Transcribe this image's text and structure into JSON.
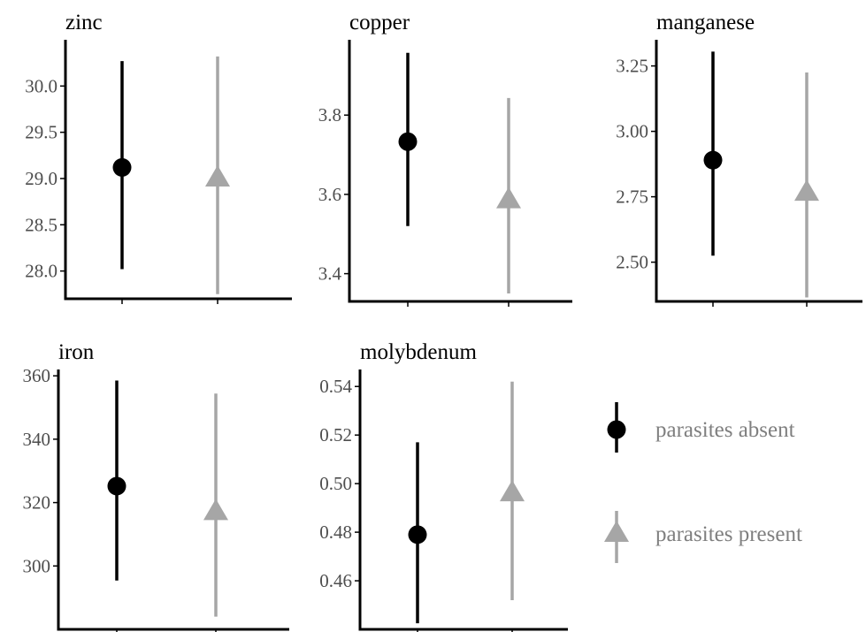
{
  "colors": {
    "absent": "#000000",
    "present": "#a6a6a6",
    "axis": "#000000",
    "tick_text": "#4d4d4d",
    "legend_text": "#7f7f7f"
  },
  "legend": {
    "placement": "bottom-right",
    "entries": [
      {
        "label": "parasites absent",
        "marker": "circle",
        "color": "#000000"
      },
      {
        "label": "parasites present",
        "marker": "triangle",
        "color": "#a6a6a6"
      }
    ]
  },
  "chart_data": [
    {
      "type": "scatter",
      "title": "zinc",
      "xlabel": "",
      "ylabel": "",
      "ylim": [
        27.7,
        30.5
      ],
      "yticks": [
        28.0,
        28.5,
        29.0,
        29.5,
        30.0
      ],
      "tick_labels": [
        "28.0",
        "28.5",
        "29.0",
        "29.5",
        "30.0"
      ],
      "grid": false,
      "series": [
        {
          "name": "parasites absent",
          "marker": "circle",
          "value": 29.12,
          "lower": 28.02,
          "upper": 30.27
        },
        {
          "name": "parasites present",
          "marker": "triangle",
          "value": 29.0,
          "lower": 27.75,
          "upper": 30.32
        }
      ]
    },
    {
      "type": "scatter",
      "title": "copper",
      "xlabel": "",
      "ylabel": "",
      "ylim": [
        3.33,
        3.99
      ],
      "yticks": [
        3.4,
        3.6,
        3.8
      ],
      "tick_labels": [
        "3.4",
        "3.6",
        "3.8"
      ],
      "grid": false,
      "series": [
        {
          "name": "parasites absent",
          "marker": "circle",
          "value": 3.733,
          "lower": 3.52,
          "upper": 3.957
        },
        {
          "name": "parasites present",
          "marker": "triangle",
          "value": 3.585,
          "lower": 3.35,
          "upper": 3.843
        }
      ]
    },
    {
      "type": "scatter",
      "title": "manganese",
      "xlabel": "",
      "ylabel": "",
      "ylim": [
        2.35,
        3.35
      ],
      "yticks": [
        2.5,
        2.75,
        3.0,
        3.25
      ],
      "tick_labels": [
        "2.50",
        "2.75",
        "3.00",
        "3.25"
      ],
      "grid": false,
      "series": [
        {
          "name": "parasites absent",
          "marker": "circle",
          "value": 2.89,
          "lower": 2.525,
          "upper": 3.305
        },
        {
          "name": "parasites present",
          "marker": "triangle",
          "value": 2.765,
          "lower": 2.365,
          "upper": 3.225
        }
      ]
    },
    {
      "type": "scatter",
      "title": "iron",
      "xlabel": "",
      "ylabel": "",
      "ylim": [
        280,
        362
      ],
      "yticks": [
        300,
        320,
        340,
        360
      ],
      "tick_labels": [
        "300",
        "320",
        "340",
        "360"
      ],
      "grid": false,
      "series": [
        {
          "name": "parasites absent",
          "marker": "circle",
          "value": 325.2,
          "lower": 295.4,
          "upper": 358.5
        },
        {
          "name": "parasites present",
          "marker": "triangle",
          "value": 317.0,
          "lower": 284.0,
          "upper": 354.4
        }
      ]
    },
    {
      "type": "scatter",
      "title": "molybdenum",
      "xlabel": "",
      "ylabel": "",
      "ylim": [
        0.44,
        0.547
      ],
      "yticks": [
        0.46,
        0.48,
        0.5,
        0.52,
        0.54
      ],
      "tick_labels": [
        "0.46",
        "0.48",
        "0.50",
        "0.52",
        "0.54"
      ],
      "grid": false,
      "series": [
        {
          "name": "parasites absent",
          "marker": "circle",
          "value": 0.479,
          "lower": 0.4425,
          "upper": 0.517
        },
        {
          "name": "parasites present",
          "marker": "triangle",
          "value": 0.496,
          "lower": 0.452,
          "upper": 0.542
        }
      ]
    }
  ]
}
